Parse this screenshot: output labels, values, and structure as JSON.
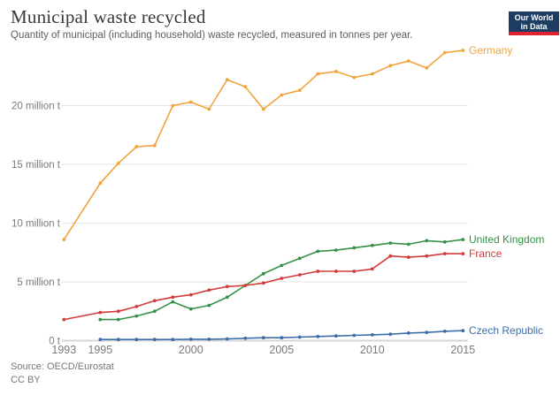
{
  "header": {
    "title": "Municipal waste recycled",
    "subtitle": "Quantity of municipal (including household) waste recycled, measured in tonnes per year.",
    "logo": {
      "line1": "Our World",
      "line2": "in Data"
    }
  },
  "footer": {
    "source": "Source: OECD/Eurostat",
    "license": "CC BY"
  },
  "colors": {
    "logo_bg": "#1d3d63",
    "logo_accent": "#e0232e",
    "grid": "#e6e6e6",
    "zero_line": "#d6d6d6",
    "axis_text": "#7a7a7a"
  },
  "chart_data": {
    "type": "line",
    "title": "Municipal waste recycled",
    "unit": "million tonnes per year",
    "grid": true,
    "legend_position": "end-of-line-labels",
    "xlim": [
      1993,
      2015
    ],
    "ylim": [
      0,
      25.2
    ],
    "x_ticks": [
      1993,
      1995,
      2000,
      2005,
      2010,
      2015
    ],
    "y_ticks": [
      {
        "value": 0,
        "label": "0 t"
      },
      {
        "value": 5,
        "label": "5 million t"
      },
      {
        "value": 10,
        "label": "10 million t"
      },
      {
        "value": 15,
        "label": "15 million t"
      },
      {
        "value": 20,
        "label": "20 million t"
      }
    ],
    "series": [
      {
        "name": "Germany",
        "color": "#f2a33c",
        "points": [
          [
            1993,
            8.6
          ],
          [
            1995,
            13.4
          ],
          [
            1996,
            15.1
          ],
          [
            1997,
            16.5
          ],
          [
            1998,
            16.6
          ],
          [
            1999,
            20.0
          ],
          [
            2000,
            20.3
          ],
          [
            2001,
            19.7
          ],
          [
            2002,
            22.2
          ],
          [
            2003,
            21.6
          ],
          [
            2004,
            19.7
          ],
          [
            2005,
            20.9
          ],
          [
            2006,
            21.3
          ],
          [
            2007,
            22.7
          ],
          [
            2008,
            22.9
          ],
          [
            2009,
            22.4
          ],
          [
            2010,
            22.7
          ],
          [
            2011,
            23.4
          ],
          [
            2012,
            23.8
          ],
          [
            2013,
            23.2
          ],
          [
            2014,
            24.5
          ],
          [
            2015,
            24.7
          ]
        ]
      },
      {
        "name": "United Kingdom",
        "color": "#359148",
        "points": [
          [
            1995,
            1.8
          ],
          [
            1996,
            1.8
          ],
          [
            1997,
            2.1
          ],
          [
            1998,
            2.5
          ],
          [
            1999,
            3.3
          ],
          [
            2000,
            2.7
          ],
          [
            2001,
            3.0
          ],
          [
            2002,
            3.7
          ],
          [
            2003,
            4.7
          ],
          [
            2004,
            5.7
          ],
          [
            2005,
            6.4
          ],
          [
            2006,
            7.0
          ],
          [
            2007,
            7.6
          ],
          [
            2008,
            7.7
          ],
          [
            2009,
            7.9
          ],
          [
            2010,
            8.1
          ],
          [
            2011,
            8.3
          ],
          [
            2012,
            8.2
          ],
          [
            2013,
            8.5
          ],
          [
            2014,
            8.4
          ],
          [
            2015,
            8.6
          ]
        ]
      },
      {
        "name": "France",
        "color": "#d23b3b",
        "points": [
          [
            1993,
            1.8
          ],
          [
            1995,
            2.4
          ],
          [
            1996,
            2.5
          ],
          [
            1997,
            2.9
          ],
          [
            1998,
            3.4
          ],
          [
            1999,
            3.7
          ],
          [
            2000,
            3.9
          ],
          [
            2001,
            4.3
          ],
          [
            2002,
            4.6
          ],
          [
            2003,
            4.7
          ],
          [
            2004,
            4.9
          ],
          [
            2005,
            5.3
          ],
          [
            2006,
            5.6
          ],
          [
            2007,
            5.9
          ],
          [
            2008,
            5.9
          ],
          [
            2009,
            5.9
          ],
          [
            2010,
            6.1
          ],
          [
            2011,
            7.2
          ],
          [
            2012,
            7.1
          ],
          [
            2013,
            7.2
          ],
          [
            2014,
            7.4
          ],
          [
            2015,
            7.4
          ]
        ]
      },
      {
        "name": "Czech Republic",
        "color": "#3d6ea8",
        "points": [
          [
            1995,
            0.1
          ],
          [
            1996,
            0.1
          ],
          [
            1997,
            0.1
          ],
          [
            1998,
            0.1
          ],
          [
            1999,
            0.1
          ],
          [
            2000,
            0.12
          ],
          [
            2001,
            0.12
          ],
          [
            2002,
            0.15
          ],
          [
            2003,
            0.2
          ],
          [
            2004,
            0.25
          ],
          [
            2005,
            0.25
          ],
          [
            2006,
            0.3
          ],
          [
            2007,
            0.35
          ],
          [
            2008,
            0.4
          ],
          [
            2009,
            0.45
          ],
          [
            2010,
            0.5
          ],
          [
            2011,
            0.55
          ],
          [
            2012,
            0.65
          ],
          [
            2013,
            0.7
          ],
          [
            2014,
            0.8
          ],
          [
            2015,
            0.85
          ]
        ]
      }
    ]
  }
}
